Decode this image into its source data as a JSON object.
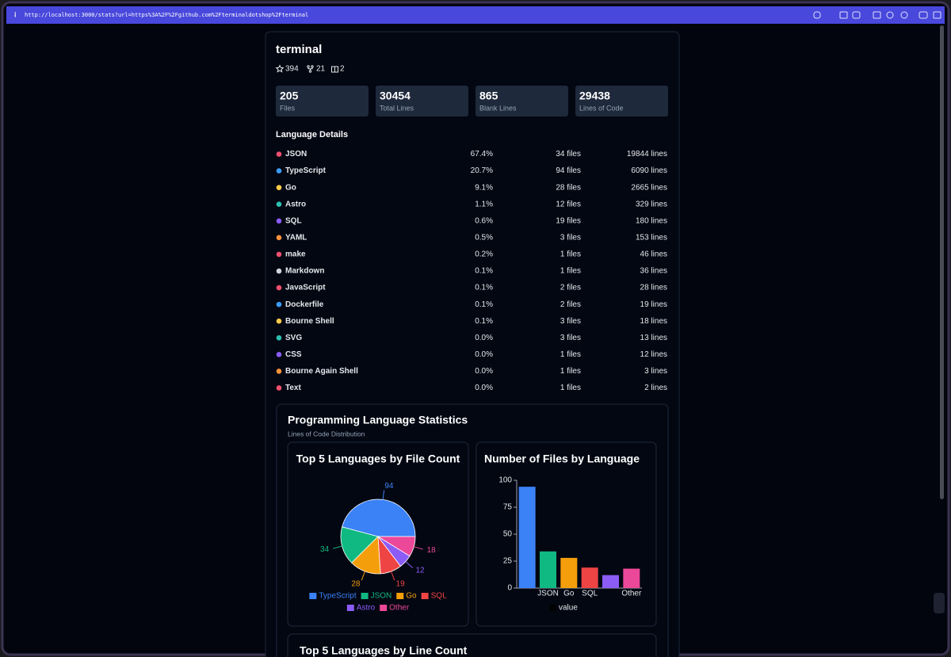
{
  "browser": {
    "url": "http://localhost:3000/stats?url=https%3A%2F%2Fgithub.com%2Fterminaldotshop%2Fterminal"
  },
  "repo": {
    "name": "terminal",
    "stars": 394,
    "forks": 21,
    "books": 2
  },
  "stats": [
    {
      "value": 205,
      "label": "Files"
    },
    {
      "value": 30454,
      "label": "Total Lines"
    },
    {
      "value": 865,
      "label": "Blank Lines"
    },
    {
      "value": 29438,
      "label": "Lines of Code"
    }
  ],
  "language_details": {
    "title": "Language Details",
    "rows": [
      {
        "name": "JSON",
        "color": "#f0506e",
        "percent": "67.4%",
        "files": "34 files",
        "lines": "19844 lines"
      },
      {
        "name": "TypeScript",
        "color": "#3b9cf6",
        "percent": "20.7%",
        "files": "94 files",
        "lines": "6090 lines"
      },
      {
        "name": "Go",
        "color": "#facc4a",
        "percent": "9.1%",
        "files": "28 files",
        "lines": "2665 lines"
      },
      {
        "name": "Astro",
        "color": "#2dc0b0",
        "percent": "1.1%",
        "files": "12 files",
        "lines": "329 lines"
      },
      {
        "name": "SQL",
        "color": "#8b5cf6",
        "percent": "0.6%",
        "files": "19 files",
        "lines": "180 lines"
      },
      {
        "name": "YAML",
        "color": "#fb923c",
        "percent": "0.5%",
        "files": "3 files",
        "lines": "153 lines"
      },
      {
        "name": "make",
        "color": "#f0506e",
        "percent": "0.2%",
        "files": "1 files",
        "lines": "46 lines"
      },
      {
        "name": "Markdown",
        "color": "#d1d5db",
        "percent": "0.1%",
        "files": "1 files",
        "lines": "36 lines"
      },
      {
        "name": "JavaScript",
        "color": "#f0506e",
        "percent": "0.1%",
        "files": "2 files",
        "lines": "28 lines"
      },
      {
        "name": "Dockerfile",
        "color": "#3b9cf6",
        "percent": "0.1%",
        "files": "2 files",
        "lines": "19 lines"
      },
      {
        "name": "Bourne Shell",
        "color": "#facc4a",
        "percent": "0.1%",
        "files": "3 files",
        "lines": "18 lines"
      },
      {
        "name": "SVG",
        "color": "#2dc0b0",
        "percent": "0.0%",
        "files": "3 files",
        "lines": "13 lines"
      },
      {
        "name": "CSS",
        "color": "#8b5cf6",
        "percent": "0.0%",
        "files": "1 files",
        "lines": "12 lines"
      },
      {
        "name": "Bourne Again Shell",
        "color": "#fb923c",
        "percent": "0.0%",
        "files": "1 files",
        "lines": "3 lines"
      },
      {
        "name": "Text",
        "color": "#f0506e",
        "percent": "0.0%",
        "files": "1 files",
        "lines": "2 lines"
      }
    ]
  },
  "statistics": {
    "title": "Programming Language Statistics",
    "subtitle": "Lines of Code Distribution",
    "next_card_title": "Top 5 Languages by Line Count"
  },
  "chart_data": [
    {
      "type": "pie",
      "title": "Top 5 Languages by File Count",
      "categories": [
        "TypeScript",
        "JSON",
        "Go",
        "SQL",
        "Astro",
        "Other"
      ],
      "values": [
        94,
        34,
        28,
        19,
        12,
        18
      ],
      "colors": [
        "#3b82f6",
        "#10b981",
        "#f59e0b",
        "#ef4444",
        "#8b5cf6",
        "#ec4899"
      ]
    },
    {
      "type": "bar",
      "title": "Number of Files by Language",
      "categories": [
        null,
        "JSON",
        "Go",
        "SQL",
        null,
        "Other"
      ],
      "series": [
        {
          "name": "value",
          "color": "#000000",
          "values": [
            94,
            34,
            28,
            19,
            12,
            18
          ]
        }
      ],
      "bar_colors": [
        "#3b82f6",
        "#10b981",
        "#f59e0b",
        "#ef4444",
        "#8b5cf6",
        "#ec4899"
      ],
      "ylim": [
        0,
        100
      ],
      "yticks": [
        0,
        25,
        50,
        75,
        100
      ]
    }
  ]
}
